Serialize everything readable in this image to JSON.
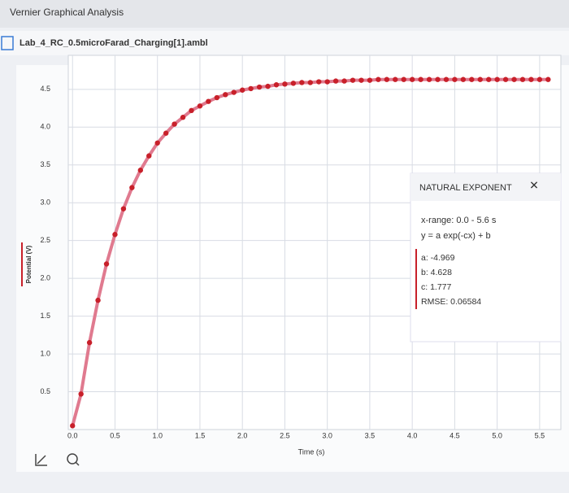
{
  "app_title": "Vernier Graphical Analysis",
  "file_name": "Lab_4_RC_0.5microFarad_Charging[1].ambl",
  "chart_data": {
    "type": "scatter",
    "x_label": "Time (s)",
    "y_label": "Potential (V)",
    "x": [
      0.0,
      0.1,
      0.2,
      0.3,
      0.4,
      0.5,
      0.6,
      0.7,
      0.8,
      0.9,
      1.0,
      1.1,
      1.2,
      1.3,
      1.4,
      1.5,
      1.6,
      1.7,
      1.8,
      1.9,
      2.0,
      2.1,
      2.2,
      2.3,
      2.4,
      2.5,
      2.6,
      2.7,
      2.8,
      2.9,
      3.0,
      3.1,
      3.2,
      3.3,
      3.4,
      3.5,
      3.6,
      3.7,
      3.8,
      3.9,
      4.0,
      4.1,
      4.2,
      4.3,
      4.4,
      4.5,
      4.6,
      4.7,
      4.8,
      4.9,
      5.0,
      5.1,
      5.2,
      5.3,
      5.4,
      5.5,
      5.6
    ],
    "series": [
      {
        "name": "Potential",
        "color": "#c8202a",
        "fit_color": "#e07a8f",
        "values": [
          0.05,
          0.47,
          1.15,
          1.71,
          2.19,
          2.58,
          2.92,
          3.2,
          3.43,
          3.62,
          3.79,
          3.92,
          4.04,
          4.13,
          4.22,
          4.28,
          4.34,
          4.39,
          4.43,
          4.46,
          4.49,
          4.51,
          4.53,
          4.54,
          4.56,
          4.57,
          4.58,
          4.59,
          4.59,
          4.6,
          4.6,
          4.61,
          4.61,
          4.62,
          4.62,
          4.62,
          4.63,
          4.63,
          4.63,
          4.63,
          4.63,
          4.63,
          4.63,
          4.63,
          4.63,
          4.63,
          4.63,
          4.63,
          4.63,
          4.63,
          4.63,
          4.63,
          4.63,
          4.63,
          4.63,
          4.63,
          4.63
        ]
      }
    ],
    "xlim": [
      -0.05,
      5.75
    ],
    "ylim": [
      0,
      4.95
    ],
    "xticks": [
      {
        "value": 0,
        "label": "0.0"
      },
      0.5,
      {
        "value": 1,
        "label": "1.0"
      },
      1.5,
      {
        "value": 2,
        "label": "2.0"
      },
      2.5,
      {
        "value": 3,
        "label": "3.0"
      },
      3.5,
      {
        "value": 4,
        "label": "4.0"
      },
      4.5,
      {
        "value": 5,
        "label": "5.0"
      },
      5.5
    ],
    "yticks": [
      0.5,
      {
        "value": 1,
        "label": "1.0"
      },
      1.5,
      {
        "value": 2,
        "label": "2.0"
      },
      2.5,
      {
        "value": 3,
        "label": "3.0"
      },
      3.5,
      {
        "value": 4,
        "label": "4.0"
      },
      4.5
    ],
    "grid": true
  },
  "fit_panel": {
    "title": "NATURAL EXPONENT",
    "close": "✕",
    "lines": [
      "x-range: 0.0 - 5.6 s",
      "y = a exp(-cx) + b"
    ],
    "params": [
      "a: -4.969",
      "b: 4.628",
      "c: 1.777",
      "RMSE: 0.06584"
    ]
  }
}
